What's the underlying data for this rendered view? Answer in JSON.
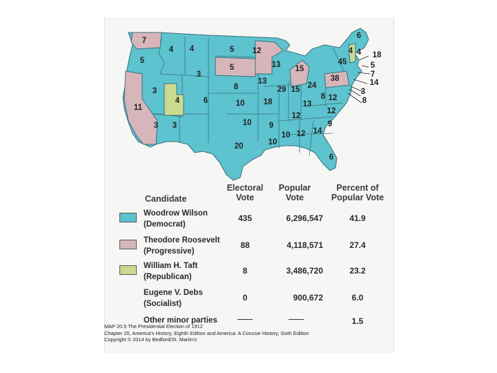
{
  "colors": {
    "wilson": "#5cc3cf",
    "roosevelt": "#d7b6bb",
    "taft": "#c9db8e",
    "water": "#cfe4ec",
    "border": "#3a6f7a"
  },
  "map": {
    "state_labels": [
      {
        "state": "WA",
        "ev": "7"
      },
      {
        "state": "OR",
        "ev": "5"
      },
      {
        "state": "CA",
        "ev": "11"
      },
      {
        "state": "ID",
        "ev": "4"
      },
      {
        "state": "NV",
        "ev": "3"
      },
      {
        "state": "MT",
        "ev": "4"
      },
      {
        "state": "WY",
        "ev": "3"
      },
      {
        "state": "UT",
        "ev": "4"
      },
      {
        "state": "AZ",
        "ev": "3"
      },
      {
        "state": "CO",
        "ev": "6"
      },
      {
        "state": "NM",
        "ev": "3"
      },
      {
        "state": "ND",
        "ev": "5"
      },
      {
        "state": "SD",
        "ev": "5"
      },
      {
        "state": "NE",
        "ev": "8"
      },
      {
        "state": "KS",
        "ev": "10"
      },
      {
        "state": "OK",
        "ev": "10"
      },
      {
        "state": "TX",
        "ev": "20"
      },
      {
        "state": "MN",
        "ev": "12"
      },
      {
        "state": "IA",
        "ev": "13"
      },
      {
        "state": "MO",
        "ev": "18"
      },
      {
        "state": "AR",
        "ev": "9"
      },
      {
        "state": "LA",
        "ev": "10"
      },
      {
        "state": "WI",
        "ev": "13"
      },
      {
        "state": "IL",
        "ev": "29"
      },
      {
        "state": "MI",
        "ev": "15"
      },
      {
        "state": "IN",
        "ev": "15"
      },
      {
        "state": "OH",
        "ev": "24"
      },
      {
        "state": "KY",
        "ev": "13"
      },
      {
        "state": "TN",
        "ev": "12"
      },
      {
        "state": "MS",
        "ev": "10"
      },
      {
        "state": "AL",
        "ev": "12"
      },
      {
        "state": "GA",
        "ev": "14"
      },
      {
        "state": "FL",
        "ev": "6"
      },
      {
        "state": "SC",
        "ev": "9"
      },
      {
        "state": "NC",
        "ev": "12"
      },
      {
        "state": "VA",
        "ev": "12"
      },
      {
        "state": "WV",
        "ev": "8"
      },
      {
        "state": "PA",
        "ev": "38"
      },
      {
        "state": "NY",
        "ev": "45"
      },
      {
        "state": "VT",
        "ev": "4"
      },
      {
        "state": "NH",
        "ev": "4"
      },
      {
        "state": "ME",
        "ev": "6"
      },
      {
        "state": "MA",
        "ev": "18"
      },
      {
        "state": "RI",
        "ev": "5"
      },
      {
        "state": "CT",
        "ev": "7"
      },
      {
        "state": "NJ",
        "ev": "14"
      },
      {
        "state": "DE",
        "ev": "3"
      },
      {
        "state": "MD",
        "ev": "8"
      }
    ]
  },
  "table": {
    "headers": {
      "candidate": "Candidate",
      "electoral_1": "Electoral",
      "electoral_2": "Vote",
      "popular_1": "Popular",
      "popular_2": "Vote",
      "percent_1": "Percent of",
      "percent_2": "Popular Vote"
    },
    "rows": [
      {
        "name": "Woodrow Wilson",
        "party": "(Democrat)",
        "electoral": "435",
        "popular": "6,296,547",
        "percent": "41.9",
        "swatch": "wilson"
      },
      {
        "name": "Theodore Roosevelt",
        "party": "(Progressive)",
        "electoral": "88",
        "popular": "4,118,571",
        "percent": "27.4",
        "swatch": "roosevelt"
      },
      {
        "name": "William H. Taft",
        "party": "(Republican)",
        "electoral": "8",
        "popular": "3,486,720",
        "percent": "23.2",
        "swatch": "taft"
      },
      {
        "name": "Eugene V. Debs",
        "party": "(Socialist)",
        "electoral": "0",
        "popular": "900,672",
        "percent": "6.0",
        "swatch": null
      },
      {
        "name": "Other minor parties",
        "party": "",
        "electoral": "",
        "popular": "",
        "percent": "1.5",
        "swatch": null
      }
    ]
  },
  "caption": {
    "line1": "MAP 20.5  The Presidential Election of 1912",
    "line2": "Chapter 20, America's History, Eighth Edition and America: A Concise History, Sixth Edition",
    "line3": "Copyright © 2014 by Bedford/St. Martin's"
  }
}
